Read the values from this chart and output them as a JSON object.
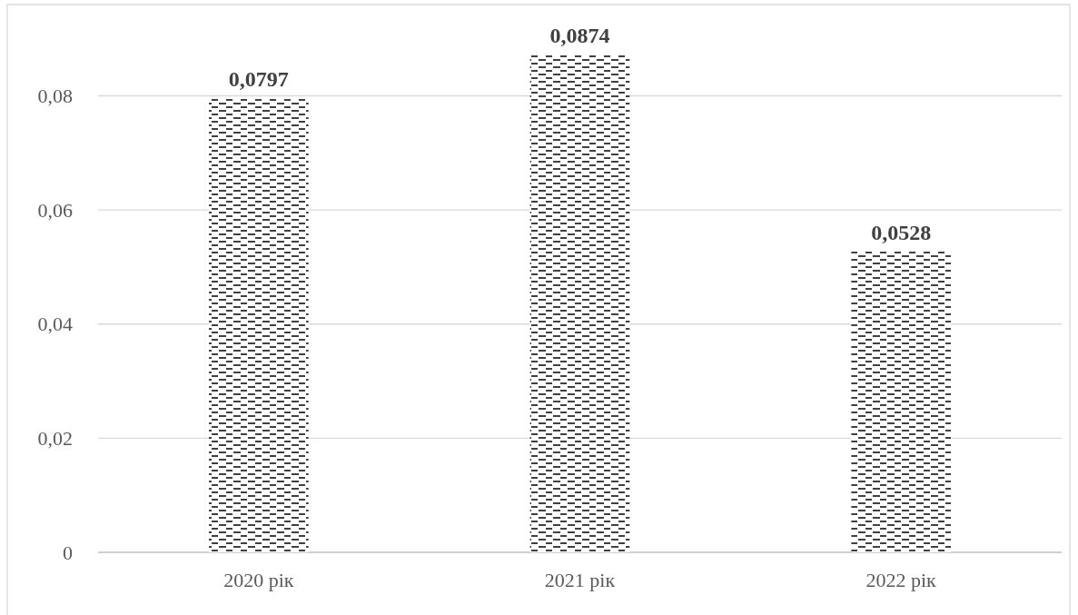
{
  "chart_data": {
    "type": "bar",
    "categories": [
      "2020 рік",
      "2021 рік",
      "2022 рік"
    ],
    "values": [
      0.0797,
      0.0874,
      0.0528
    ],
    "color": "#000000",
    "value_labels": [
      "0,0797",
      "0,0874",
      "0,0528"
    ],
    "ylim": [
      0,
      0.096
    ],
    "yticks": [
      {
        "value": 0,
        "label": "0"
      },
      {
        "value": 0.02,
        "label": "0,02"
      },
      {
        "value": 0.04,
        "label": "0,04"
      },
      {
        "value": 0.06,
        "label": "0,06"
      },
      {
        "value": 0.08,
        "label": "0,08"
      }
    ],
    "grid": "y"
  }
}
